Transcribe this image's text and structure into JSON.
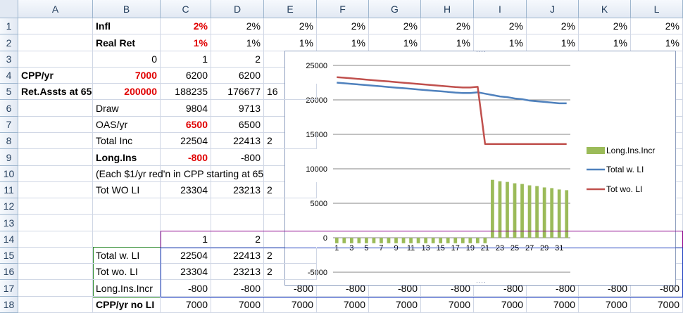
{
  "columns": [
    "A",
    "B",
    "C",
    "D",
    "E",
    "F",
    "G",
    "H",
    "I",
    "J",
    "K",
    "L"
  ],
  "rows": [
    "1",
    "2",
    "3",
    "4",
    "5",
    "6",
    "7",
    "8",
    "9",
    "10",
    "11",
    "12",
    "13",
    "14",
    "15",
    "16",
    "17",
    "18"
  ],
  "cells": [
    {
      "ref": "B1",
      "text": "Infl",
      "bold": true
    },
    {
      "ref": "C1",
      "text": "2%",
      "bold": true,
      "red": true,
      "right": true
    },
    {
      "ref": "D1",
      "text": "2%",
      "right": true
    },
    {
      "ref": "E1",
      "text": "2%",
      "right": true
    },
    {
      "ref": "F1",
      "text": "2%",
      "right": true
    },
    {
      "ref": "G1",
      "text": "2%",
      "right": true
    },
    {
      "ref": "H1",
      "text": "2%",
      "right": true
    },
    {
      "ref": "I1",
      "text": "2%",
      "right": true
    },
    {
      "ref": "J1",
      "text": "2%",
      "right": true
    },
    {
      "ref": "K1",
      "text": "2%",
      "right": true
    },
    {
      "ref": "L1",
      "text": "2%",
      "right": true
    },
    {
      "ref": "B2",
      "text": "Real Ret",
      "bold": true
    },
    {
      "ref": "C2",
      "text": "1%",
      "bold": true,
      "red": true,
      "right": true
    },
    {
      "ref": "D2",
      "text": "1%",
      "right": true
    },
    {
      "ref": "E2",
      "text": "1%",
      "right": true
    },
    {
      "ref": "F2",
      "text": "1%",
      "right": true
    },
    {
      "ref": "G2",
      "text": "1%",
      "right": true
    },
    {
      "ref": "H2",
      "text": "1%",
      "right": true
    },
    {
      "ref": "I2",
      "text": "1%",
      "right": true
    },
    {
      "ref": "J2",
      "text": "1%",
      "right": true
    },
    {
      "ref": "K2",
      "text": "1%",
      "right": true
    },
    {
      "ref": "L2",
      "text": "1%",
      "right": true
    },
    {
      "ref": "B3",
      "text": "0",
      "right": true
    },
    {
      "ref": "C3",
      "text": "1",
      "right": true
    },
    {
      "ref": "D3",
      "text": "2",
      "right": true
    },
    {
      "ref": "A4",
      "text": "CPP/yr",
      "bold": true
    },
    {
      "ref": "B4",
      "text": "7000",
      "bold": true,
      "red": true,
      "right": true
    },
    {
      "ref": "C4",
      "text": "6200",
      "right": true
    },
    {
      "ref": "D4",
      "text": "6200",
      "right": true
    },
    {
      "ref": "A5",
      "text": "Ret.Assts at 65",
      "bold": true
    },
    {
      "ref": "B5",
      "text": "200000",
      "bold": true,
      "red": true,
      "right": true
    },
    {
      "ref": "C5",
      "text": "188235",
      "right": true
    },
    {
      "ref": "D5",
      "text": "176677",
      "right": true
    },
    {
      "ref": "E5",
      "text": "16"
    },
    {
      "ref": "B6",
      "text": "Draw"
    },
    {
      "ref": "C6",
      "text": "9804",
      "right": true
    },
    {
      "ref": "D6",
      "text": "9713",
      "right": true
    },
    {
      "ref": "B7",
      "text": "OAS/yr"
    },
    {
      "ref": "C7",
      "text": "6500",
      "bold": true,
      "red": true,
      "right": true
    },
    {
      "ref": "D7",
      "text": "6500",
      "right": true
    },
    {
      "ref": "B8",
      "text": "Total Inc"
    },
    {
      "ref": "C8",
      "text": "22504",
      "right": true
    },
    {
      "ref": "D8",
      "text": "22413",
      "right": true
    },
    {
      "ref": "E8",
      "text": "2"
    },
    {
      "ref": "B9",
      "text": "Long.Ins",
      "bold": true
    },
    {
      "ref": "C9",
      "text": "-800",
      "bold": true,
      "red": true,
      "right": true
    },
    {
      "ref": "D9",
      "text": "-800",
      "right": true
    },
    {
      "ref": "B10",
      "text": "(Each $1/yr red'n in CPP starting at 65"
    },
    {
      "ref": "B11",
      "text": "Tot WO LI"
    },
    {
      "ref": "C11",
      "text": "23304",
      "right": true
    },
    {
      "ref": "D11",
      "text": "23213",
      "right": true
    },
    {
      "ref": "E11",
      "text": "2"
    },
    {
      "ref": "C14",
      "text": "1",
      "right": true
    },
    {
      "ref": "D14",
      "text": "2",
      "right": true
    },
    {
      "ref": "B15",
      "text": "Total w. LI"
    },
    {
      "ref": "C15",
      "text": "22504",
      "right": true
    },
    {
      "ref": "D15",
      "text": "22413",
      "right": true
    },
    {
      "ref": "E15",
      "text": "2"
    },
    {
      "ref": "B16",
      "text": "Tot wo. LI"
    },
    {
      "ref": "C16",
      "text": "23304",
      "right": true
    },
    {
      "ref": "D16",
      "text": "23213",
      "right": true
    },
    {
      "ref": "E16",
      "text": "2"
    },
    {
      "ref": "B17",
      "text": "Long.Ins.Incr"
    },
    {
      "ref": "C17",
      "text": "-800",
      "right": true
    },
    {
      "ref": "D17",
      "text": "-800",
      "right": true
    },
    {
      "ref": "E17",
      "text": "-800",
      "right": true
    },
    {
      "ref": "F17",
      "text": "-800",
      "right": true
    },
    {
      "ref": "G17",
      "text": "-800",
      "right": true
    },
    {
      "ref": "H17",
      "text": "-800",
      "right": true
    },
    {
      "ref": "I17",
      "text": "-800",
      "right": true
    },
    {
      "ref": "J17",
      "text": "-800",
      "right": true
    },
    {
      "ref": "K17",
      "text": "-800",
      "right": true
    },
    {
      "ref": "L17",
      "text": "-800",
      "right": true
    },
    {
      "ref": "B18",
      "text": "CPP/yr no LI",
      "bold": true
    },
    {
      "ref": "C18",
      "text": "7000",
      "right": true
    },
    {
      "ref": "D18",
      "text": "7000",
      "right": true
    },
    {
      "ref": "E18",
      "text": "7000",
      "right": true
    },
    {
      "ref": "F18",
      "text": "7000",
      "right": true
    },
    {
      "ref": "G18",
      "text": "7000",
      "right": true
    },
    {
      "ref": "H18",
      "text": "7000",
      "right": true
    },
    {
      "ref": "I18",
      "text": "7000",
      "right": true
    },
    {
      "ref": "J18",
      "text": "7000",
      "right": true
    },
    {
      "ref": "K18",
      "text": "7000",
      "right": true
    },
    {
      "ref": "L18",
      "text": "7000",
      "right": true
    }
  ],
  "colors": {
    "bar": "#9bbb59",
    "total_line": "#4f81bd",
    "tot_wo_line": "#c0504d",
    "gridline": "#868686"
  },
  "chart_data": {
    "type": "bar+line",
    "x": [
      1,
      2,
      3,
      4,
      5,
      6,
      7,
      8,
      9,
      10,
      11,
      12,
      13,
      14,
      15,
      16,
      17,
      18,
      19,
      20,
      21,
      22,
      23,
      24,
      25,
      26,
      27,
      28,
      29,
      30,
      31,
      32
    ],
    "x_tick_labels": [
      "1",
      "3",
      "5",
      "7",
      "9",
      "11",
      "13",
      "15",
      "17",
      "19",
      "21",
      "23",
      "25",
      "27",
      "29",
      "31"
    ],
    "ylim": [
      -5000,
      25000
    ],
    "y_ticks": [
      "-5000",
      "0",
      "5000",
      "10000",
      "15000",
      "20000",
      "25000"
    ],
    "grid": true,
    "legend_position": "right",
    "series": [
      {
        "name": "Long.Ins.Incr",
        "type": "bar",
        "values": [
          -800,
          -800,
          -800,
          -800,
          -800,
          -800,
          -800,
          -800,
          -800,
          -800,
          -800,
          -800,
          -800,
          -800,
          -800,
          -800,
          -800,
          -800,
          -800,
          -800,
          -800,
          8400,
          8200,
          8100,
          7900,
          7800,
          7600,
          7500,
          7300,
          7200,
          7000,
          6900
        ]
      },
      {
        "name": "Total w. LI",
        "type": "line",
        "values": [
          22500,
          22410,
          22320,
          22230,
          22140,
          22050,
          21960,
          21870,
          21780,
          21690,
          21600,
          21510,
          21420,
          21330,
          21240,
          21150,
          21060,
          21000,
          21000,
          21100,
          20900,
          20700,
          20500,
          20400,
          20200,
          20100,
          19900,
          19800,
          19700,
          19600,
          19500,
          19500
        ]
      },
      {
        "name": "Tot wo. LI",
        "type": "line",
        "values": [
          23300,
          23210,
          23120,
          23030,
          22940,
          22850,
          22760,
          22670,
          22580,
          22490,
          22400,
          22310,
          22220,
          22130,
          22040,
          21950,
          21860,
          21800,
          21800,
          21900,
          13600,
          13600,
          13600,
          13600,
          13600,
          13600,
          13600,
          13600,
          13600,
          13600,
          13600,
          13600
        ]
      }
    ]
  }
}
